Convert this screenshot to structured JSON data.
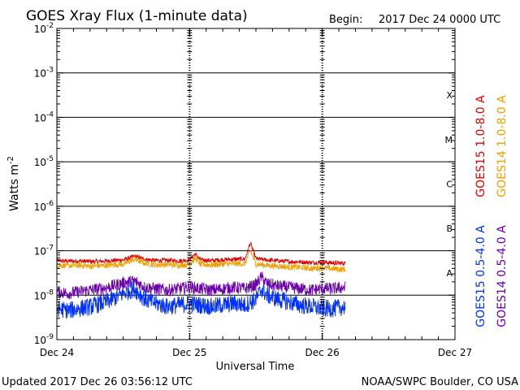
{
  "title": "GOES Xray Flux (1-minute data)",
  "begin_label": "Begin:",
  "begin_value": "2017 Dec 24 0000 UTC",
  "footer_left": "Updated 2017 Dec 26 03:56:12 UTC",
  "footer_right": "NOAA/SWPC Boulder, CO USA",
  "chart_data": {
    "type": "line",
    "xlabel": "Universal Time",
    "ylabel": "Watts m^-2",
    "yscale": "log",
    "ylim": [
      1e-09,
      0.01
    ],
    "xlim": [
      0,
      72
    ],
    "x_units": "hours since 2017 Dec 24 0000 UTC",
    "x_tick_labels": [
      {
        "x": 0,
        "label": "Dec 24"
      },
      {
        "x": 24,
        "label": "Dec 25"
      },
      {
        "x": 48,
        "label": "Dec 26"
      },
      {
        "x": 72,
        "label": "Dec 27"
      }
    ],
    "y_ticks": [
      {
        "exp": -9,
        "label": "10",
        "sup": "-9"
      },
      {
        "exp": -8,
        "label": "10",
        "sup": "-8"
      },
      {
        "exp": -7,
        "label": "10",
        "sup": "-7"
      },
      {
        "exp": -6,
        "label": "10",
        "sup": "-6"
      },
      {
        "exp": -5,
        "label": "10",
        "sup": "-5"
      },
      {
        "exp": -4,
        "label": "10",
        "sup": "-4"
      },
      {
        "exp": -3,
        "label": "10",
        "sup": "-3"
      },
      {
        "exp": -2,
        "label": "10",
        "sup": "-2"
      }
    ],
    "flare_classes": [
      {
        "label": "A",
        "exp": -8
      },
      {
        "label": "B",
        "exp": -7
      },
      {
        "label": "C",
        "exp": -6
      },
      {
        "label": "M",
        "exp": -5
      },
      {
        "label": "X",
        "exp": -4
      }
    ],
    "legend": {
      "placement": "right-vertical"
    },
    "series": [
      {
        "name": "GOES15 1.0-8.0 A",
        "color": "#e00000",
        "x": [
          0,
          2,
          4,
          6,
          8,
          10,
          12,
          14,
          16,
          18,
          20,
          22,
          24,
          25,
          26,
          28,
          30,
          32,
          34,
          35,
          36,
          38,
          40,
          42,
          44,
          46,
          48,
          50,
          52.2
        ],
        "y": [
          6e-08,
          5.8e-08,
          5.9e-08,
          5.7e-08,
          5.8e-08,
          6e-08,
          6.2e-08,
          7.5e-08,
          6.4e-08,
          6e-08,
          6.1e-08,
          5.9e-08,
          6.2e-08,
          8.5e-08,
          6.2e-08,
          6e-08,
          6.3e-08,
          6.4e-08,
          6.5e-08,
          1.5e-07,
          6.6e-08,
          6.2e-08,
          5.9e-08,
          5.7e-08,
          5.6e-08,
          5.4e-08,
          5.5e-08,
          5.3e-08,
          5.2e-08
        ]
      },
      {
        "name": "GOES14 1.0-8.0 A",
        "color": "#f0a000",
        "x": [
          0,
          2,
          4,
          6,
          8,
          10,
          12,
          14,
          16,
          18,
          20,
          22,
          24,
          25,
          26,
          28,
          30,
          32,
          34,
          35,
          36,
          38,
          40,
          42,
          44,
          46,
          48,
          50,
          52.2
        ],
        "y": [
          4.8e-08,
          4.6e-08,
          4.7e-08,
          4.5e-08,
          4.6e-08,
          4.8e-08,
          5e-08,
          6.5e-08,
          5.2e-08,
          4.8e-08,
          4.9e-08,
          4.7e-08,
          5e-08,
          6.8e-08,
          4.9e-08,
          4.8e-08,
          5e-08,
          5.1e-08,
          5.1e-08,
          1e-07,
          5e-08,
          4.7e-08,
          4.5e-08,
          4.3e-08,
          4.2e-08,
          4e-08,
          4.1e-08,
          3.9e-08,
          3.8e-08
        ]
      },
      {
        "name": "GOES14 0.5-4.0 A",
        "color": "#6a00a8",
        "x": [
          0,
          2,
          4,
          6,
          8,
          10,
          12,
          14,
          16,
          18,
          20,
          22,
          24,
          26,
          28,
          30,
          32,
          34,
          36,
          37,
          38,
          40,
          42,
          44,
          46,
          48,
          50,
          52.2
        ],
        "y": [
          1.2e-08,
          1.1e-08,
          1.2e-08,
          1.3e-08,
          1.4e-08,
          1.6e-08,
          1.9e-08,
          2.1e-08,
          1.5e-08,
          1.4e-08,
          1.3e-08,
          1.4e-08,
          1.5e-08,
          1.4e-08,
          1.3e-08,
          1.4e-08,
          1.5e-08,
          1.4e-08,
          1.7e-08,
          2.6e-08,
          1.8e-08,
          1.6e-08,
          1.5e-08,
          1.4e-08,
          1.3e-08,
          1.4e-08,
          1.4e-08,
          1.5e-08
        ]
      },
      {
        "name": "GOES15 0.5-4.0 A",
        "color": "#0030ff",
        "x": [
          0,
          2,
          4,
          6,
          8,
          10,
          12,
          14,
          16,
          18,
          20,
          22,
          24,
          26,
          28,
          30,
          32,
          34,
          36,
          37,
          38,
          40,
          42,
          44,
          46,
          48,
          50,
          52.2
        ],
        "y": [
          5e-09,
          4.5e-09,
          5e-09,
          5.5e-09,
          6.5e-09,
          8e-09,
          1.1e-08,
          1.4e-08,
          8e-09,
          6.5e-09,
          5.5e-09,
          6e-09,
          6.5e-09,
          6e-09,
          5.5e-09,
          6e-09,
          6.5e-09,
          6e-09,
          8e-09,
          1.4e-08,
          1e-08,
          8e-09,
          7e-09,
          6e-09,
          5.5e-09,
          5e-09,
          5e-09,
          5.5e-09
        ]
      }
    ]
  }
}
